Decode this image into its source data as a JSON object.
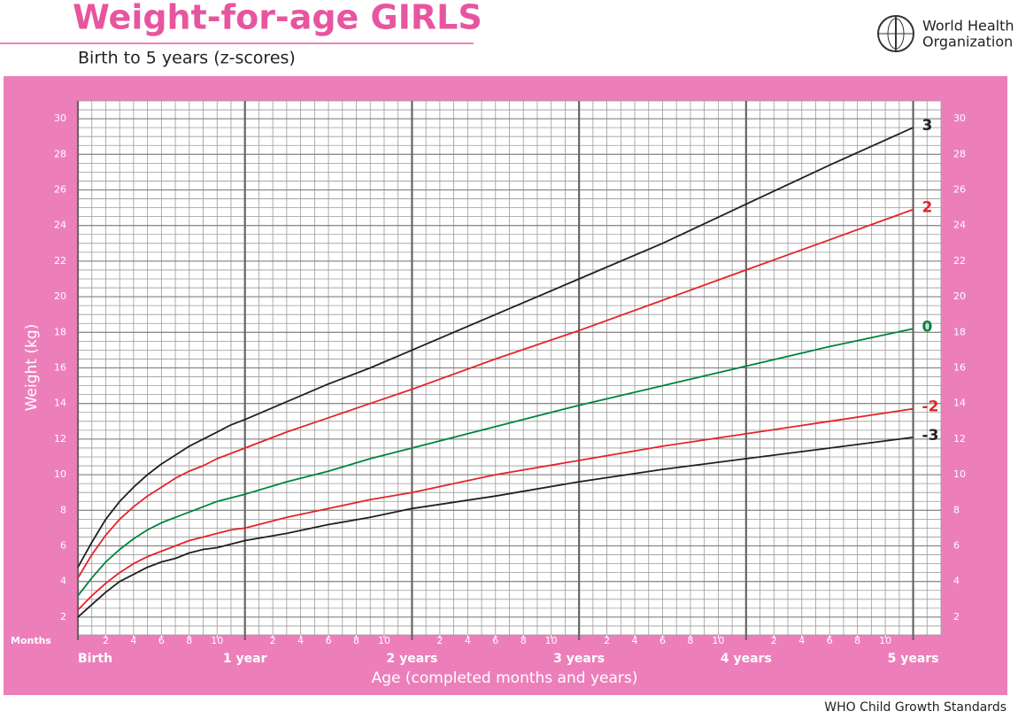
{
  "chart_data": {
    "type": "line",
    "title": "Weight-for-age GIRLS",
    "subtitle": "Birth to 5 years (z-scores)",
    "organization": [
      "World Health",
      "Organization"
    ],
    "footer": "WHO Child Growth Standards",
    "ylabel": "Weight (kg)",
    "xlabel": "Age (completed months and years)",
    "month_axis_label": "Months",
    "xlim": [
      0,
      62
    ],
    "ylim": [
      1,
      31
    ],
    "yticks": [
      2,
      4,
      6,
      8,
      10,
      12,
      14,
      16,
      18,
      20,
      22,
      24,
      26,
      28,
      30
    ],
    "xticks": [
      {
        "value": 0,
        "label": "Birth"
      },
      {
        "value": 12,
        "label": "1 year"
      },
      {
        "value": 24,
        "label": "2 years"
      },
      {
        "value": 36,
        "label": "3 years"
      },
      {
        "value": 48,
        "label": "4 years"
      },
      {
        "value": 60,
        "label": "5 years"
      }
    ],
    "month_ticks": [
      2,
      4,
      6,
      8,
      10,
      {
        "value": 14,
        "label": "2"
      },
      {
        "value": 16,
        "label": "4"
      },
      {
        "value": 18,
        "label": "6"
      },
      {
        "value": 20,
        "label": "8"
      },
      {
        "value": 22,
        "label": "10"
      },
      {
        "value": 26,
        "label": "2"
      },
      {
        "value": 28,
        "label": "4"
      },
      {
        "value": 30,
        "label": "6"
      },
      {
        "value": 32,
        "label": "8"
      },
      {
        "value": 34,
        "label": "10"
      },
      {
        "value": 38,
        "label": "2"
      },
      {
        "value": 40,
        "label": "4"
      },
      {
        "value": 42,
        "label": "6"
      },
      {
        "value": 44,
        "label": "8"
      },
      {
        "value": 46,
        "label": "10"
      },
      {
        "value": 50,
        "label": "2"
      },
      {
        "value": 52,
        "label": "4"
      },
      {
        "value": 54,
        "label": "6"
      },
      {
        "value": 56,
        "label": "8"
      },
      {
        "value": 58,
        "label": "10"
      }
    ],
    "grid": true,
    "x": [
      0,
      1,
      2,
      3,
      4,
      5,
      6,
      7,
      8,
      9,
      10,
      11,
      12,
      15,
      18,
      21,
      24,
      30,
      36,
      42,
      48,
      54,
      60
    ],
    "series": [
      {
        "name": "3",
        "color": "#231f20",
        "values": [
          4.8,
          6.2,
          7.5,
          8.5,
          9.3,
          10.0,
          10.6,
          11.1,
          11.6,
          12.0,
          12.4,
          12.8,
          13.1,
          14.1,
          15.1,
          16.0,
          17.0,
          19.0,
          21.0,
          23.0,
          25.2,
          27.4,
          29.5
        ]
      },
      {
        "name": "2",
        "color": "#e3242b",
        "values": [
          4.2,
          5.5,
          6.6,
          7.5,
          8.2,
          8.8,
          9.3,
          9.8,
          10.2,
          10.5,
          10.9,
          11.2,
          11.5,
          12.4,
          13.2,
          14.0,
          14.8,
          16.5,
          18.1,
          19.8,
          21.5,
          23.2,
          24.9
        ]
      },
      {
        "name": "0",
        "color": "#00843d",
        "values": [
          3.2,
          4.2,
          5.1,
          5.8,
          6.4,
          6.9,
          7.3,
          7.6,
          7.9,
          8.2,
          8.5,
          8.7,
          8.9,
          9.6,
          10.2,
          10.9,
          11.5,
          12.7,
          13.9,
          15.0,
          16.1,
          17.2,
          18.2
        ]
      },
      {
        "name": "-2",
        "color": "#e3242b",
        "values": [
          2.4,
          3.2,
          3.9,
          4.5,
          5.0,
          5.4,
          5.7,
          6.0,
          6.3,
          6.5,
          6.7,
          6.9,
          7.0,
          7.6,
          8.1,
          8.6,
          9.0,
          10.0,
          10.8,
          11.6,
          12.3,
          13.0,
          13.7
        ]
      },
      {
        "name": "-3",
        "color": "#231f20",
        "values": [
          2.0,
          2.7,
          3.4,
          4.0,
          4.4,
          4.8,
          5.1,
          5.3,
          5.6,
          5.8,
          5.9,
          6.1,
          6.3,
          6.7,
          7.2,
          7.6,
          8.1,
          8.8,
          9.6,
          10.3,
          10.9,
          11.5,
          12.1
        ]
      }
    ]
  }
}
